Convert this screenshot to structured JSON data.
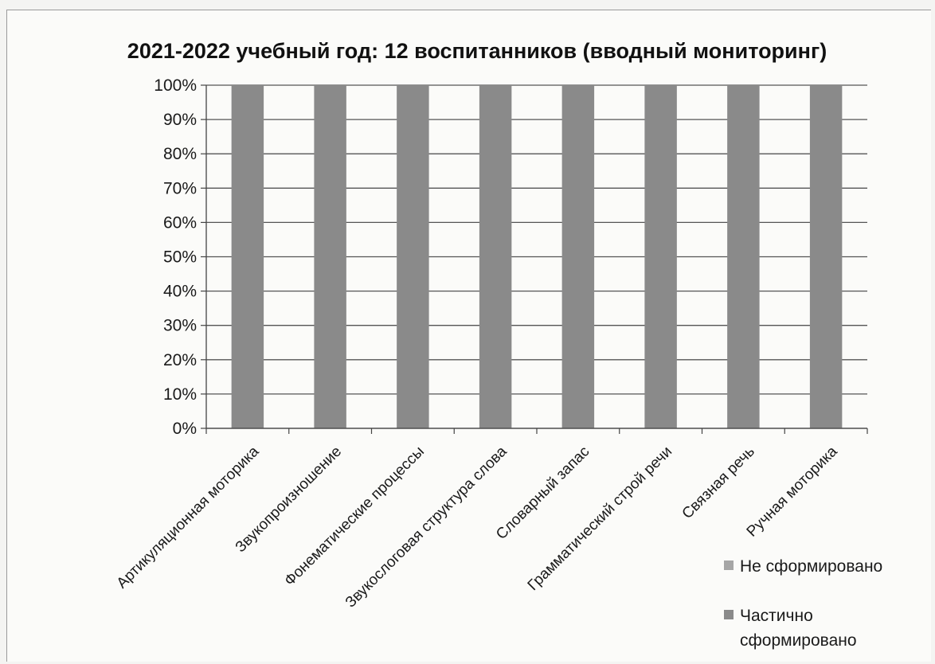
{
  "chart_data": {
    "type": "bar",
    "stacked": true,
    "title": "2021-2022 учебный год: 12 воспитанников (вводный мониторинг)",
    "xlabel": "",
    "ylabel": "",
    "ylim": [
      0,
      100
    ],
    "yticks": [
      "0%",
      "10%",
      "20%",
      "30%",
      "40%",
      "50%",
      "60%",
      "70%",
      "80%",
      "90%",
      "100%"
    ],
    "categories": [
      "Артикуляционная моторика",
      "Звукопроизношение",
      "Фонематические процессы",
      "Звукослоговая структура слова",
      "Словарный запас",
      "Грамматический строй речи",
      "Связная речь",
      "Ручная моторика"
    ],
    "series": [
      {
        "name": "Не сформировано",
        "values": [
          0,
          0,
          0,
          0,
          0,
          0,
          0,
          0
        ],
        "color": "#a6a6a6"
      },
      {
        "name": "Частично сформировано",
        "values": [
          100,
          100,
          100,
          100,
          100,
          100,
          100,
          100
        ],
        "color": "#8a8a8a"
      }
    ],
    "grid": true,
    "legend_position": "bottom-right"
  }
}
